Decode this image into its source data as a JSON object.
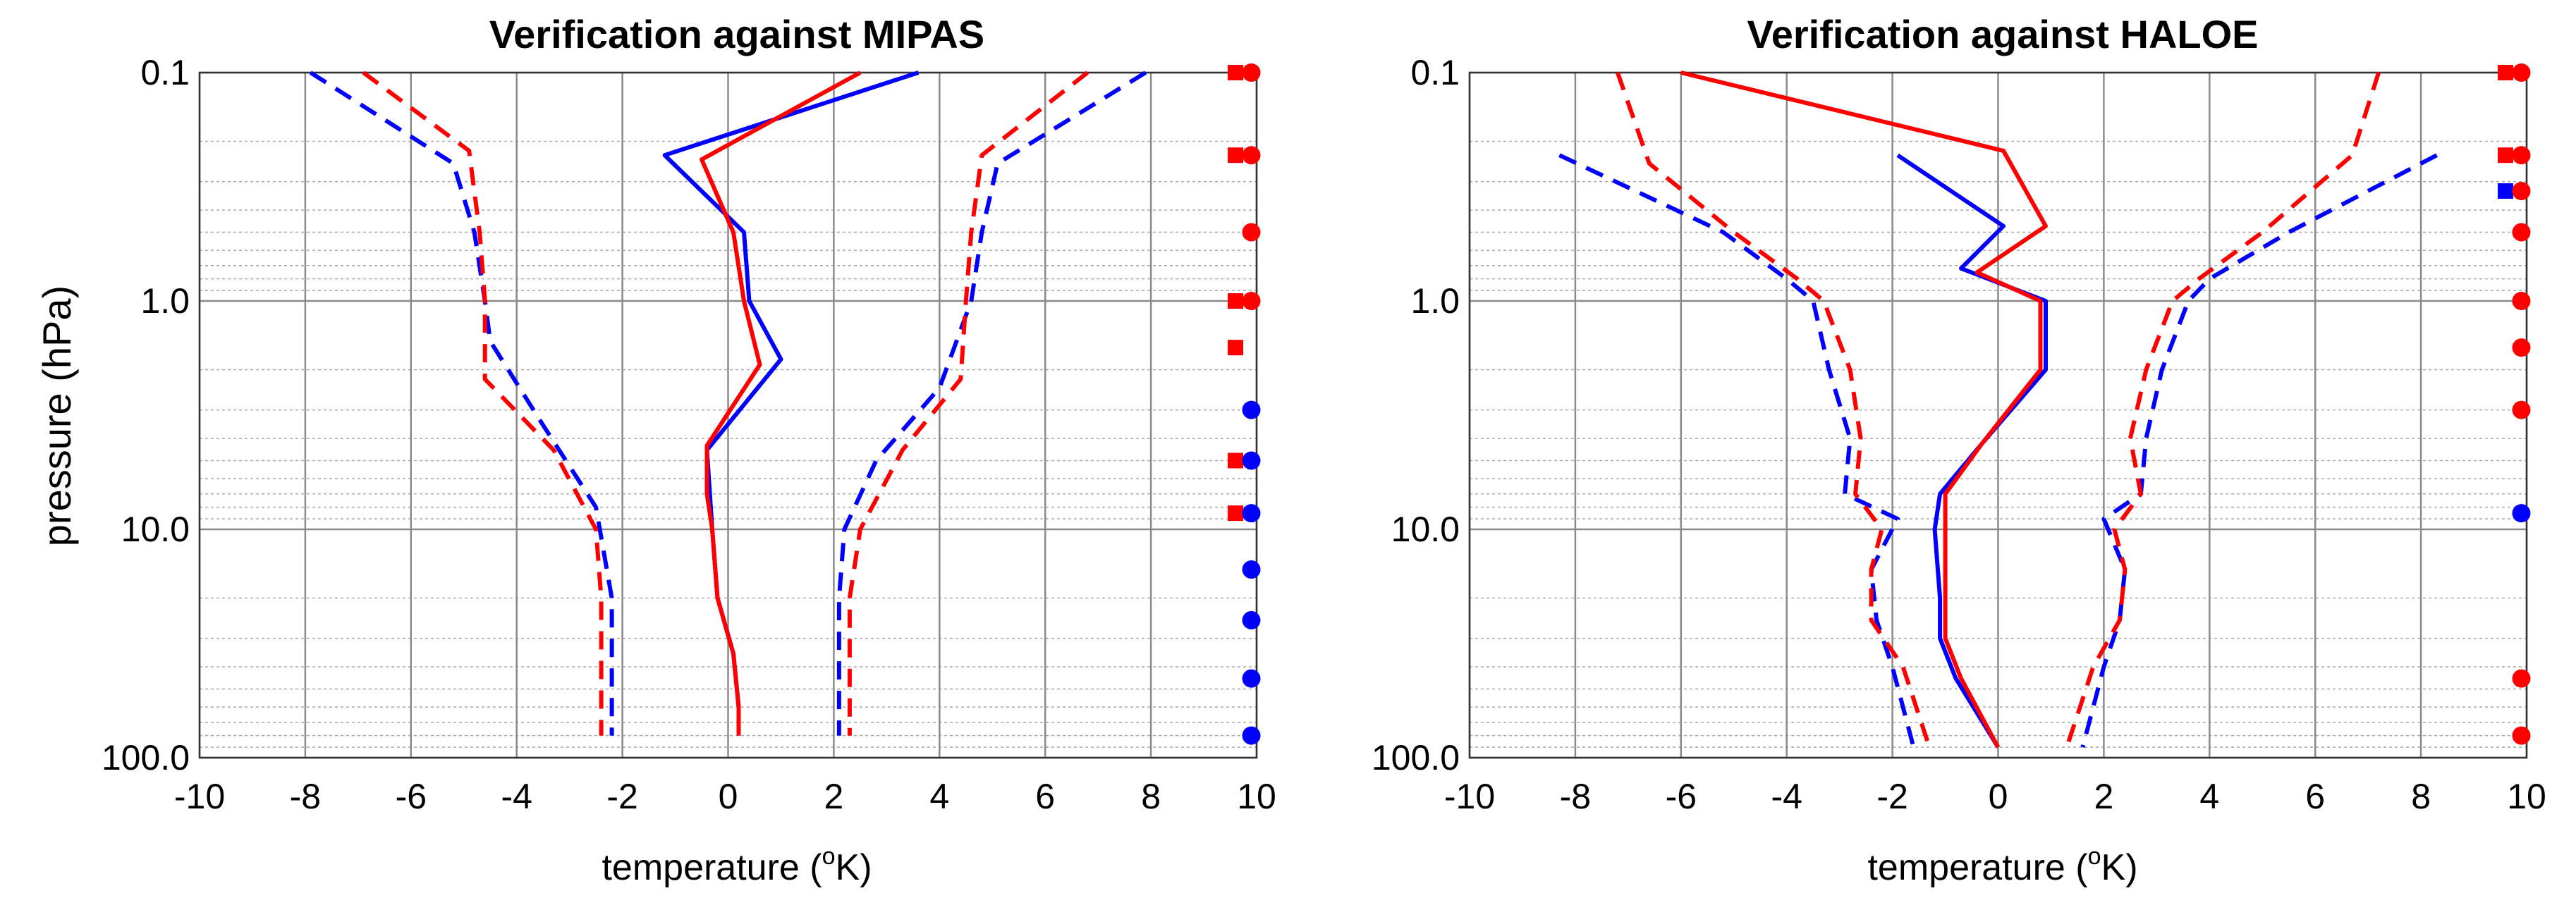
{
  "colors": {
    "series_a": "#0000ff",
    "series_b": "#ff0000"
  },
  "chart_data": [
    {
      "type": "line",
      "title": "Verification against MIPAS",
      "xlabel": "temperature (",
      "xlabel_sup": "o",
      "xlabel_end": "K)",
      "ylabel": "pressure (hPa)",
      "xlim": [
        -10,
        10
      ],
      "ylim": [
        0.1,
        100
      ],
      "yscale": "log",
      "xticks": [
        -10,
        -8,
        -6,
        -4,
        -2,
        0,
        2,
        4,
        6,
        8,
        10
      ],
      "yticks": [
        0.1,
        1.0,
        10.0,
        100.0
      ],
      "ytick_labels": [
        "0.1",
        "1.0",
        "10.0",
        "100.0"
      ],
      "grid": true,
      "series": [
        {
          "name": "blue solid",
          "color": "blue",
          "style": "solid",
          "points": [
            [
              3.6,
              0.1
            ],
            [
              -1.2,
              0.23
            ],
            [
              0.3,
              0.5
            ],
            [
              0.4,
              1.0
            ],
            [
              1.0,
              1.8
            ],
            [
              -0.4,
              4.5
            ],
            [
              -0.3,
              10
            ],
            [
              -0.2,
              20
            ],
            [
              0.1,
              35
            ],
            [
              0.2,
              60
            ],
            [
              0.2,
              80
            ]
          ]
        },
        {
          "name": "red solid",
          "color": "red",
          "style": "solid",
          "points": [
            [
              2.5,
              0.1
            ],
            [
              -0.5,
              0.24
            ],
            [
              0.1,
              0.5
            ],
            [
              0.3,
              1.0
            ],
            [
              0.6,
              1.9
            ],
            [
              -0.4,
              4.3
            ],
            [
              -0.4,
              7
            ],
            [
              -0.3,
              10
            ],
            [
              -0.2,
              20
            ],
            [
              0.1,
              35
            ],
            [
              0.2,
              60
            ],
            [
              0.2,
              80
            ]
          ]
        },
        {
          "name": "blue dashed low",
          "color": "blue",
          "style": "dashed",
          "points": [
            [
              -7.9,
              0.1
            ],
            [
              -5.2,
              0.25
            ],
            [
              -4.8,
              0.5
            ],
            [
              -4.6,
              1.0
            ],
            [
              -4.5,
              1.5
            ],
            [
              -3.5,
              3.5
            ],
            [
              -2.5,
              8
            ],
            [
              -2.2,
              20
            ],
            [
              -2.2,
              40
            ],
            [
              -2.2,
              70
            ],
            [
              -2.2,
              80
            ]
          ]
        },
        {
          "name": "red dashed low",
          "color": "red",
          "style": "dashed",
          "points": [
            [
              -6.9,
              0.1
            ],
            [
              -4.9,
              0.22
            ],
            [
              -4.7,
              0.5
            ],
            [
              -4.6,
              1.0
            ],
            [
              -4.6,
              2.2
            ],
            [
              -3.3,
              4.5
            ],
            [
              -2.5,
              10
            ],
            [
              -2.4,
              20
            ],
            [
              -2.4,
              45
            ],
            [
              -2.4,
              70
            ],
            [
              -2.4,
              80
            ]
          ]
        },
        {
          "name": "blue dashed high",
          "color": "blue",
          "style": "dashed",
          "points": [
            [
              7.9,
              0.1
            ],
            [
              5.1,
              0.25
            ],
            [
              4.8,
              0.5
            ],
            [
              4.6,
              1.0
            ],
            [
              4.0,
              2.4
            ],
            [
              2.8,
              5
            ],
            [
              2.2,
              10
            ],
            [
              2.1,
              20
            ],
            [
              2.1,
              40
            ],
            [
              2.1,
              70
            ],
            [
              2.1,
              80
            ]
          ]
        },
        {
          "name": "red dashed high",
          "color": "red",
          "style": "dashed",
          "points": [
            [
              6.8,
              0.1
            ],
            [
              4.8,
              0.23
            ],
            [
              4.6,
              0.5
            ],
            [
              4.5,
              1.0
            ],
            [
              4.4,
              2.2
            ],
            [
              3.3,
              4.5
            ],
            [
              2.5,
              10
            ],
            [
              2.3,
              20
            ],
            [
              2.3,
              40
            ],
            [
              2.3,
              70
            ],
            [
              2.3,
              80
            ]
          ]
        }
      ],
      "markers": [
        {
          "x": 9.6,
          "y": 0.1,
          "shape": "square",
          "color": "red"
        },
        {
          "x": 9.9,
          "y": 0.1,
          "shape": "circle",
          "color": "red"
        },
        {
          "x": 9.6,
          "y": 0.23,
          "shape": "square",
          "color": "red"
        },
        {
          "x": 9.9,
          "y": 0.23,
          "shape": "circle",
          "color": "red"
        },
        {
          "x": 9.9,
          "y": 0.5,
          "shape": "circle",
          "color": "red"
        },
        {
          "x": 9.6,
          "y": 1.0,
          "shape": "square",
          "color": "red"
        },
        {
          "x": 9.9,
          "y": 1.0,
          "shape": "circle",
          "color": "red"
        },
        {
          "x": 9.6,
          "y": 1.6,
          "shape": "square",
          "color": "red"
        },
        {
          "x": 9.9,
          "y": 3.0,
          "shape": "circle",
          "color": "blue"
        },
        {
          "x": 9.6,
          "y": 5.0,
          "shape": "square",
          "color": "red"
        },
        {
          "x": 9.9,
          "y": 5.0,
          "shape": "circle",
          "color": "blue"
        },
        {
          "x": 9.6,
          "y": 8.5,
          "shape": "square",
          "color": "red"
        },
        {
          "x": 9.9,
          "y": 8.5,
          "shape": "circle",
          "color": "blue"
        },
        {
          "x": 9.9,
          "y": 15,
          "shape": "circle",
          "color": "blue"
        },
        {
          "x": 9.9,
          "y": 25,
          "shape": "circle",
          "color": "blue"
        },
        {
          "x": 9.9,
          "y": 45,
          "shape": "circle",
          "color": "blue"
        },
        {
          "x": 9.9,
          "y": 80,
          "shape": "circle",
          "color": "blue"
        }
      ]
    },
    {
      "type": "line",
      "title": "Verification against HALOE",
      "xlabel": "temperature (",
      "xlabel_sup": "o",
      "xlabel_end": "K)",
      "ylabel": "",
      "xlim": [
        -10,
        10
      ],
      "ylim": [
        0.1,
        100
      ],
      "yscale": "log",
      "xticks": [
        -10,
        -8,
        -6,
        -4,
        -2,
        0,
        2,
        4,
        6,
        8,
        10
      ],
      "yticks": [
        0.1,
        1.0,
        10.0,
        100.0
      ],
      "ytick_labels": [
        "0.1",
        "1.0",
        "10.0",
        "100.0"
      ],
      "grid": true,
      "series": [
        {
          "name": "blue solid",
          "color": "blue",
          "style": "solid",
          "points": [
            [
              -1.9,
              0.23
            ],
            [
              0.1,
              0.47
            ],
            [
              -0.7,
              0.72
            ],
            [
              0.9,
              1.0
            ],
            [
              0.9,
              2.0
            ],
            [
              -0.3,
              4.2
            ],
            [
              -1.1,
              7
            ],
            [
              -1.2,
              10
            ],
            [
              -1.1,
              20
            ],
            [
              -1.1,
              30
            ],
            [
              -0.8,
              45
            ],
            [
              0.0,
              90
            ]
          ]
        },
        {
          "name": "red solid",
          "color": "red",
          "style": "solid",
          "points": [
            [
              -6.0,
              0.1
            ],
            [
              0.1,
              0.22
            ],
            [
              0.9,
              0.47
            ],
            [
              -0.4,
              0.75
            ],
            [
              0.8,
              1.0
            ],
            [
              0.8,
              2.0
            ],
            [
              -0.3,
              4.2
            ],
            [
              -1.0,
              7
            ],
            [
              -1.0,
              10
            ],
            [
              -1.0,
              20
            ],
            [
              -1.0,
              30
            ],
            [
              -0.7,
              45
            ],
            [
              0.0,
              90
            ]
          ]
        },
        {
          "name": "blue dashed low",
          "color": "blue",
          "style": "dashed",
          "points": [
            [
              -8.3,
              0.23
            ],
            [
              -5.2,
              0.5
            ],
            [
              -4.0,
              0.8
            ],
            [
              -3.5,
              1.0
            ],
            [
              -3.2,
              2.0
            ],
            [
              -2.8,
              4.0
            ],
            [
              -2.9,
              7
            ],
            [
              -1.9,
              9
            ],
            [
              -2.4,
              15
            ],
            [
              -2.3,
              25
            ],
            [
              -2.0,
              40
            ],
            [
              -1.6,
              90
            ]
          ]
        },
        {
          "name": "red dashed low",
          "color": "red",
          "style": "dashed",
          "points": [
            [
              -7.2,
              0.1
            ],
            [
              -6.6,
              0.25
            ],
            [
              -5.0,
              0.5
            ],
            [
              -3.8,
              0.8
            ],
            [
              -3.3,
              1.0
            ],
            [
              -2.8,
              2.0
            ],
            [
              -2.6,
              4.0
            ],
            [
              -2.7,
              7
            ],
            [
              -2.2,
              10
            ],
            [
              -2.4,
              15
            ],
            [
              -2.4,
              25
            ],
            [
              -1.8,
              40
            ],
            [
              -1.3,
              90
            ]
          ]
        },
        {
          "name": "blue dashed high",
          "color": "blue",
          "style": "dashed",
          "points": [
            [
              8.3,
              0.23
            ],
            [
              5.5,
              0.5
            ],
            [
              4.0,
              0.8
            ],
            [
              3.6,
              1.0
            ],
            [
              3.1,
              2.0
            ],
            [
              2.8,
              4.0
            ],
            [
              2.7,
              7
            ],
            [
              2.0,
              9
            ],
            [
              2.4,
              15
            ],
            [
              2.3,
              25
            ],
            [
              2.0,
              40
            ],
            [
              1.6,
              90
            ]
          ]
        },
        {
          "name": "red dashed high",
          "color": "red",
          "style": "dashed",
          "points": [
            [
              7.2,
              0.1
            ],
            [
              6.7,
              0.23
            ],
            [
              5.0,
              0.5
            ],
            [
              3.8,
              0.8
            ],
            [
              3.3,
              1.0
            ],
            [
              2.8,
              2.0
            ],
            [
              2.5,
              4.0
            ],
            [
              2.7,
              7
            ],
            [
              2.2,
              10
            ],
            [
              2.4,
              15
            ],
            [
              2.3,
              25
            ],
            [
              1.8,
              40
            ],
            [
              1.3,
              90
            ]
          ]
        }
      ],
      "markers": [
        {
          "x": 9.6,
          "y": 0.1,
          "shape": "square",
          "color": "red"
        },
        {
          "x": 9.9,
          "y": 0.1,
          "shape": "circle",
          "color": "red"
        },
        {
          "x": 9.6,
          "y": 0.23,
          "shape": "square",
          "color": "red"
        },
        {
          "x": 9.9,
          "y": 0.23,
          "shape": "circle",
          "color": "red"
        },
        {
          "x": 9.6,
          "y": 0.33,
          "shape": "square",
          "color": "blue"
        },
        {
          "x": 9.9,
          "y": 0.33,
          "shape": "circle",
          "color": "red"
        },
        {
          "x": 9.9,
          "y": 0.5,
          "shape": "circle",
          "color": "red"
        },
        {
          "x": 9.9,
          "y": 1.0,
          "shape": "circle",
          "color": "red"
        },
        {
          "x": 9.9,
          "y": 1.6,
          "shape": "circle",
          "color": "red"
        },
        {
          "x": 9.9,
          "y": 3.0,
          "shape": "circle",
          "color": "red"
        },
        {
          "x": 9.9,
          "y": 8.5,
          "shape": "circle",
          "color": "blue"
        },
        {
          "x": 9.9,
          "y": 45,
          "shape": "circle",
          "color": "red"
        },
        {
          "x": 9.9,
          "y": 80,
          "shape": "circle",
          "color": "red"
        }
      ]
    }
  ]
}
